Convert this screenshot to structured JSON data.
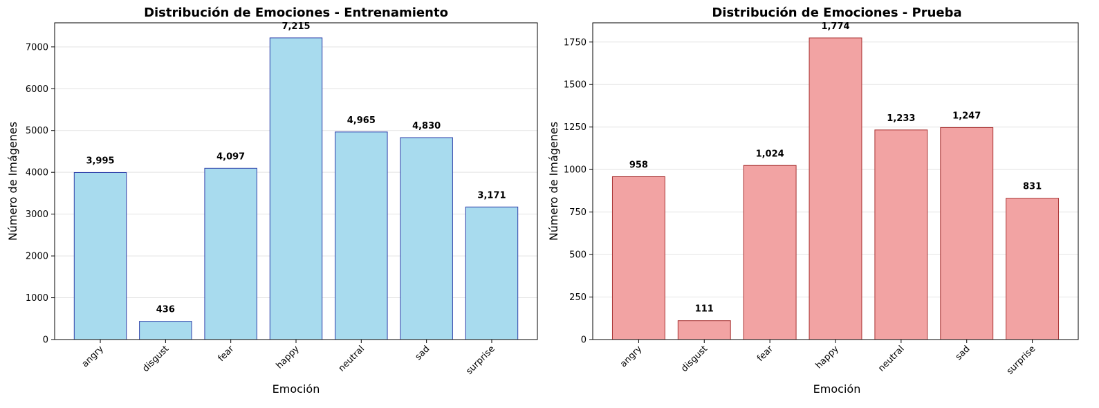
{
  "chart_data": [
    {
      "type": "bar",
      "title": "Distribución de Emociones - Entrenamiento",
      "xlabel": "Emoción",
      "ylabel": "Número de Imágenes",
      "categories": [
        "angry",
        "disgust",
        "fear",
        "happy",
        "neutral",
        "sad",
        "surprise"
      ],
      "values": [
        3995,
        436,
        4097,
        7215,
        4965,
        4830,
        3171
      ],
      "value_labels": [
        "3,995",
        "436",
        "4,097",
        "7,215",
        "4,965",
        "4,830",
        "3,171"
      ],
      "yticks": [
        0,
        1000,
        2000,
        3000,
        4000,
        5000,
        6000,
        7000
      ],
      "ylim": [
        0,
        7576
      ],
      "bar_color": "#a8dbee",
      "edge_color": "#2b3da8",
      "grid": "y"
    },
    {
      "type": "bar",
      "title": "Distribución de Emociones - Prueba",
      "xlabel": "Emoción",
      "ylabel": "Número de Imágenes",
      "categories": [
        "angry",
        "disgust",
        "fear",
        "happy",
        "neutral",
        "sad",
        "surprise"
      ],
      "values": [
        958,
        111,
        1024,
        1774,
        1233,
        1247,
        831
      ],
      "value_labels": [
        "958",
        "111",
        "1,024",
        "1,774",
        "1,233",
        "1,247",
        "831"
      ],
      "yticks": [
        0,
        250,
        500,
        750,
        1000,
        1250,
        1500,
        1750
      ],
      "ylim": [
        0,
        1863
      ],
      "bar_color": "#f2a3a3",
      "edge_color": "#a83232",
      "grid": "y"
    }
  ]
}
